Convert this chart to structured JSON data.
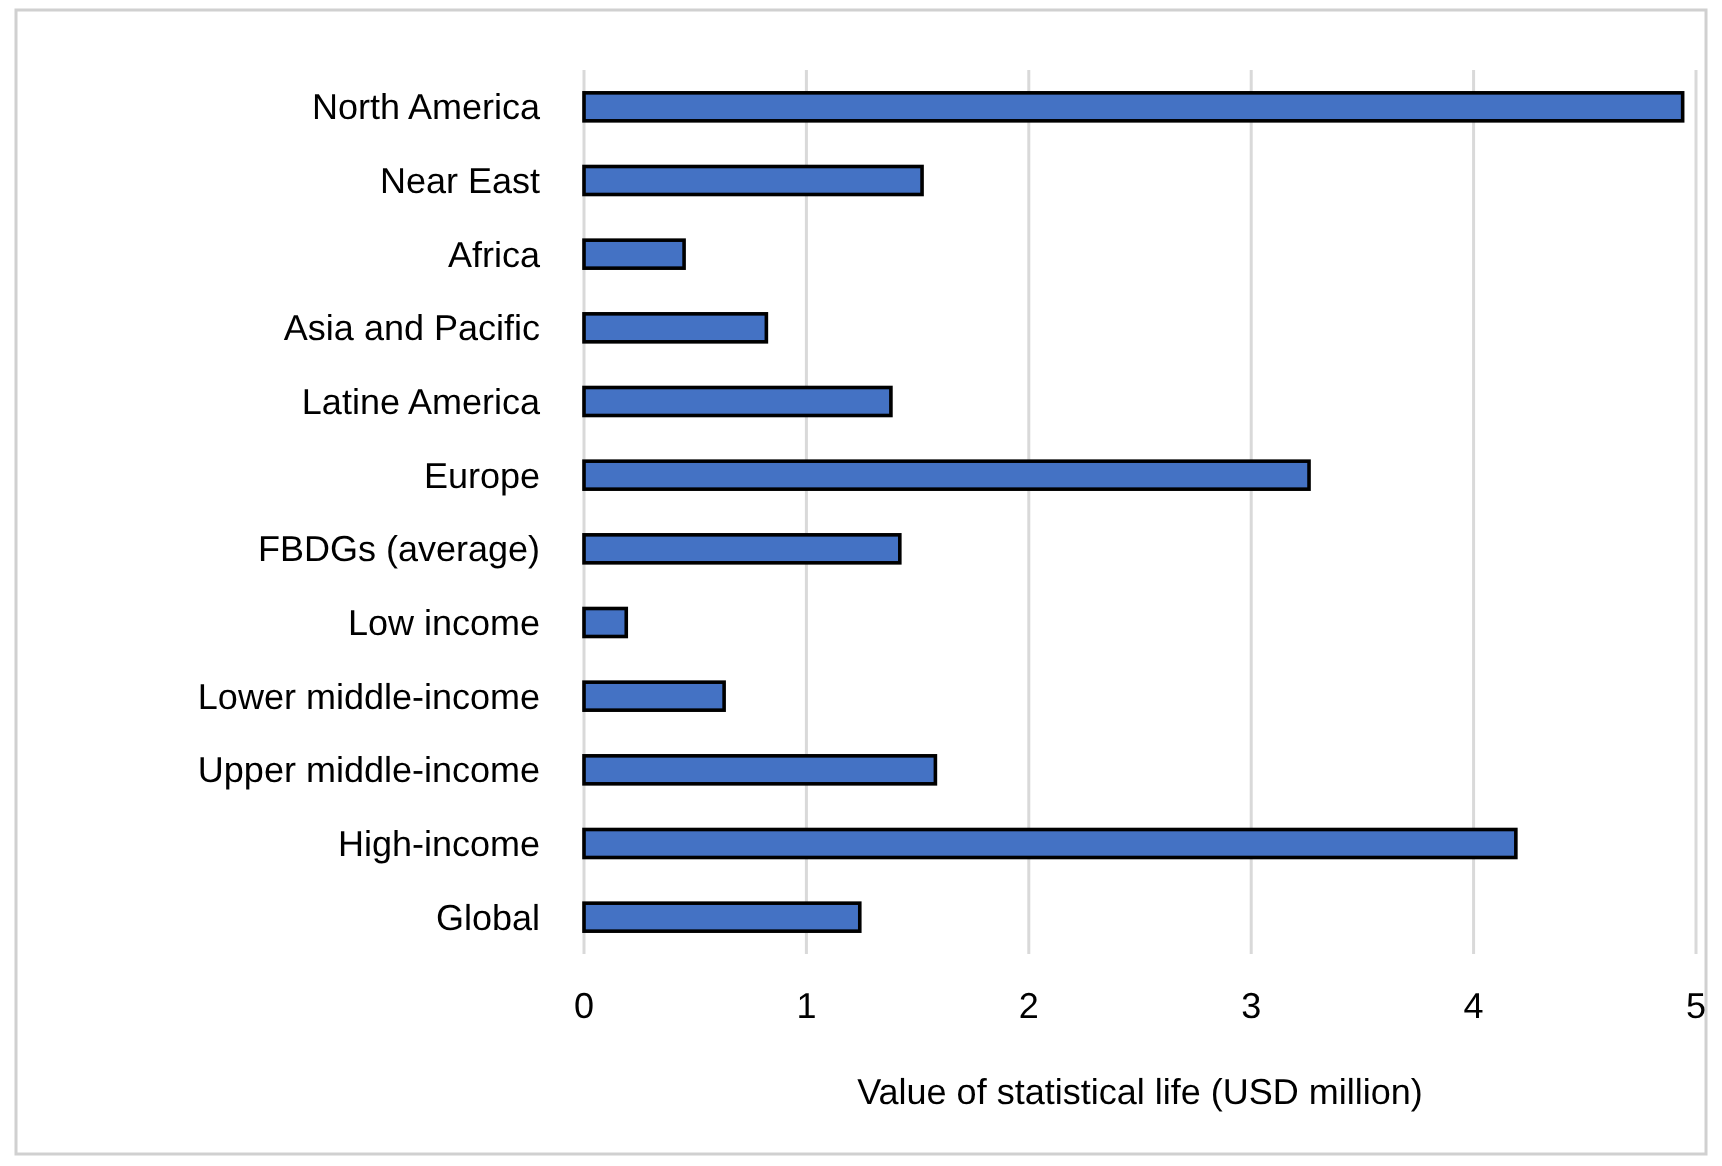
{
  "chart_data": {
    "type": "bar",
    "orientation": "horizontal",
    "xlabel": "Value of statistical life (USD million)",
    "categories": [
      "North America",
      "Near East",
      "Africa",
      "Asia and Pacific",
      "Latine America",
      "Europe",
      "FBDGs (average)",
      "Low income",
      "Lower middle-income",
      "Upper middle-income",
      "High-income",
      "Global"
    ],
    "values": [
      4.94,
      1.52,
      0.45,
      0.82,
      1.38,
      3.26,
      1.42,
      0.19,
      0.63,
      1.58,
      4.19,
      1.24
    ],
    "color": "#4472c4",
    "xlim": [
      0,
      5
    ],
    "xticks": [
      0,
      1,
      2,
      3,
      4,
      5
    ],
    "grid": "x"
  }
}
